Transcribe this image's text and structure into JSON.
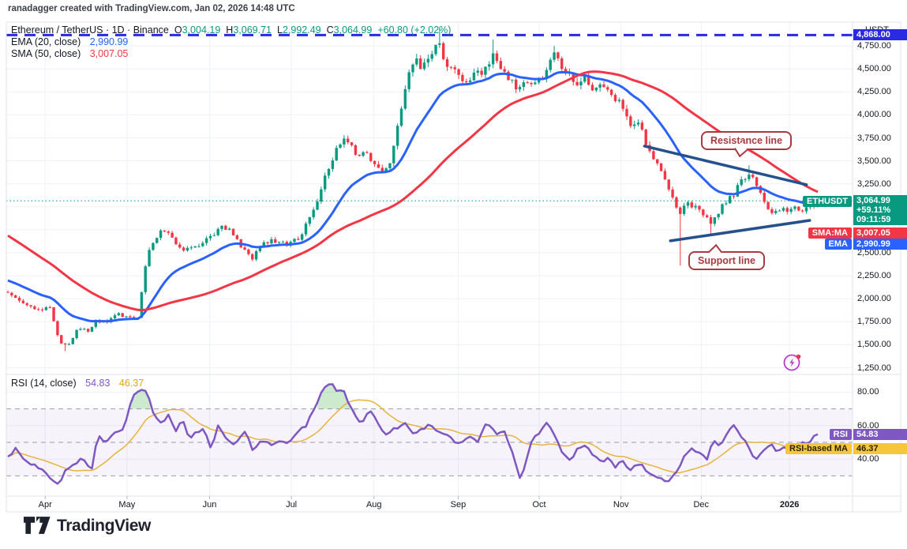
{
  "page": {
    "attribution": "ranadagger created with TradingView.com, Jan 02, 2026 14:48 UTC"
  },
  "chart": {
    "symbol_line": {
      "title": "Ethereum / TetherUS · 1D · Binance",
      "ohlc": [
        {
          "k": "O",
          "v": "3,004.19"
        },
        {
          "k": "H",
          "v": "3,069.71"
        },
        {
          "k": "L",
          "v": "2,992.49"
        },
        {
          "k": "C",
          "v": "3,064.99"
        }
      ],
      "change": "+60.80 (+2.02%)"
    },
    "indicators": [
      {
        "label": "EMA (20, close)",
        "value": "2,990.99"
      },
      {
        "label": "SMA (50, close)",
        "value": "3,007.05"
      }
    ],
    "rsi_legend": {
      "label": "RSI (14, close)",
      "value": "54.83",
      "ma_value": "46.37"
    },
    "price_axis": {
      "currency": "USDT"
    },
    "badges": {
      "ath": "4,868.00",
      "price": {
        "tag": "ETHUSDT",
        "value": "3,064.99",
        "change_pct": "+59.11%",
        "countdown": "09:11:59"
      },
      "sma": {
        "tag": "SMA:MA",
        "value": "3,007.05"
      },
      "ema": {
        "tag": "EMA",
        "value": "2,990.99"
      },
      "rsi": {
        "tag": "RSI",
        "value": "54.83"
      },
      "rsi_ma": {
        "tag": "RSI-based MA",
        "value": "46.37"
      }
    },
    "annotations": {
      "resistance": "Resistance line",
      "support": "Support line"
    }
  },
  "footer": {
    "brand": "TradingView"
  },
  "colors": {
    "up": "#089981",
    "down": "#f23645",
    "ema": "#2962ff",
    "sma": "#f23645",
    "ath": "#2a2ae2",
    "price_line": "#089981",
    "trend": "#24518b",
    "rsi": "#7e57c2",
    "rsi_ma": "#e6b33c",
    "band": "rgba(126,87,194,0.07)",
    "band_edge": "#9b9ea6",
    "overbought": "rgba(76,175,80,0.28)",
    "grid": "#eef1f7",
    "frame": "#e0e3eb"
  },
  "chart_data": {
    "type": "candlestick",
    "symbol": "ETHUSDT",
    "exchange": "Binance",
    "interval": "1D",
    "ohlc_last": {
      "open": 3004.19,
      "high": 3069.71,
      "low": 2992.49,
      "close": 3064.99,
      "change": 60.8,
      "change_pct": 2.02
    },
    "ath_line": 4868.0,
    "last_price": 3064.99,
    "candles_n": 213,
    "ema_period": 20,
    "sma_period": 50,
    "y_ticks": [
      {
        "p": 4750,
        "label": "4,750.00"
      },
      {
        "p": 4500,
        "label": "4,500.00"
      },
      {
        "p": 4250,
        "label": "4,250.00"
      },
      {
        "p": 4000,
        "label": "4,000.00"
      },
      {
        "p": 3750,
        "label": "3,750.00"
      },
      {
        "p": 3500,
        "label": "3,500.00"
      },
      {
        "p": 3250,
        "label": "3,250.00"
      },
      {
        "p": 2500,
        "label": "2,500.00"
      },
      {
        "p": 2250,
        "label": "2,250.00"
      },
      {
        "p": 2000,
        "label": "2,000.00"
      },
      {
        "p": 1750,
        "label": "1,750.00"
      },
      {
        "p": 1500,
        "label": "1,500.00"
      },
      {
        "p": 1250,
        "label": "1,250.00"
      }
    ],
    "grid_extra_prices": [
      3000,
      2750
    ],
    "x_labels": [
      {
        "label": "Apr",
        "t": 0.046
      },
      {
        "label": "May",
        "t": 0.147
      },
      {
        "label": "Jun",
        "t": 0.249
      },
      {
        "label": "Jul",
        "t": 0.35
      },
      {
        "label": "Aug",
        "t": 0.452
      },
      {
        "label": "Sep",
        "t": 0.556
      },
      {
        "label": "Oct",
        "t": 0.656
      },
      {
        "label": "Nov",
        "t": 0.757
      },
      {
        "label": "Dec",
        "t": 0.856
      },
      {
        "label": "2026",
        "t": 0.965,
        "bold": true
      }
    ],
    "close_anchors": [
      [
        0,
        2050
      ],
      [
        0.018,
        1960
      ],
      [
        0.037,
        1870
      ],
      [
        0.051,
        1920
      ],
      [
        0.063,
        1550
      ],
      [
        0.073,
        1480
      ],
      [
        0.088,
        1690
      ],
      [
        0.099,
        1640
      ],
      [
        0.109,
        1760
      ],
      [
        0.122,
        1740
      ],
      [
        0.136,
        1830
      ],
      [
        0.149,
        1790
      ],
      [
        0.161,
        1775
      ],
      [
        0.171,
        2450
      ],
      [
        0.18,
        2600
      ],
      [
        0.192,
        2760
      ],
      [
        0.205,
        2640
      ],
      [
        0.216,
        2520
      ],
      [
        0.229,
        2560
      ],
      [
        0.242,
        2620
      ],
      [
        0.253,
        2700
      ],
      [
        0.266,
        2780
      ],
      [
        0.278,
        2720
      ],
      [
        0.29,
        2550
      ],
      [
        0.3,
        2430
      ],
      [
        0.312,
        2570
      ],
      [
        0.325,
        2650
      ],
      [
        0.336,
        2590
      ],
      [
        0.349,
        2620
      ],
      [
        0.361,
        2680
      ],
      [
        0.372,
        2900
      ],
      [
        0.383,
        3100
      ],
      [
        0.395,
        3400
      ],
      [
        0.407,
        3680
      ],
      [
        0.417,
        3780
      ],
      [
        0.429,
        3560
      ],
      [
        0.441,
        3620
      ],
      [
        0.45,
        3450
      ],
      [
        0.461,
        3380
      ],
      [
        0.473,
        3520
      ],
      [
        0.482,
        3900
      ],
      [
        0.492,
        4350
      ],
      [
        0.502,
        4650
      ],
      [
        0.512,
        4500
      ],
      [
        0.523,
        4700
      ],
      [
        0.532,
        4820
      ],
      [
        0.541,
        4550
      ],
      [
        0.553,
        4480
      ],
      [
        0.565,
        4350
      ],
      [
        0.577,
        4430
      ],
      [
        0.589,
        4480
      ],
      [
        0.601,
        4650
      ],
      [
        0.614,
        4450
      ],
      [
        0.626,
        4300
      ],
      [
        0.638,
        4380
      ],
      [
        0.65,
        4320
      ],
      [
        0.663,
        4450
      ],
      [
        0.675,
        4650
      ],
      [
        0.687,
        4500
      ],
      [
        0.7,
        4350
      ],
      [
        0.711,
        4400
      ],
      [
        0.723,
        4280
      ],
      [
        0.734,
        4350
      ],
      [
        0.746,
        4200
      ],
      [
        0.758,
        4100
      ],
      [
        0.768,
        3850
      ],
      [
        0.778,
        3950
      ],
      [
        0.787,
        3700
      ],
      [
        0.797,
        3550
      ],
      [
        0.809,
        3380
      ],
      [
        0.819,
        3150
      ],
      [
        0.828,
        2900
      ],
      [
        0.84,
        3050
      ],
      [
        0.85,
        2980
      ],
      [
        0.861,
        2920
      ],
      [
        0.87,
        2820
      ],
      [
        0.882,
        3020
      ],
      [
        0.895,
        3120
      ],
      [
        0.906,
        3280
      ],
      [
        0.916,
        3360
      ],
      [
        0.926,
        3180
      ],
      [
        0.936,
        3000
      ],
      [
        0.945,
        2920
      ],
      [
        0.957,
        2960
      ],
      [
        0.968,
        2990
      ],
      [
        0.979,
        2950
      ],
      [
        0.989,
        3004.19
      ],
      [
        1,
        3064.99
      ]
    ],
    "history_anchors": [
      [
        -0.27,
        3380
      ],
      [
        -0.24,
        3350
      ],
      [
        -0.19,
        3250
      ],
      [
        -0.14,
        2950
      ],
      [
        -0.1,
        2500
      ],
      [
        -0.07,
        2150
      ],
      [
        -0.05,
        2080
      ],
      [
        -0.025,
        2060
      ]
    ],
    "wicks": [
      {
        "t": 0.073,
        "p": 1430,
        "side": "low"
      },
      {
        "t": 0.532,
        "p": 4950,
        "side": "high"
      },
      {
        "t": 0.601,
        "p": 4820,
        "side": "high"
      },
      {
        "t": 0.675,
        "p": 4750,
        "side": "high"
      },
      {
        "t": 0.828,
        "p": 2360,
        "side": "low"
      },
      {
        "t": 0.87,
        "p": 2680,
        "side": "low"
      },
      {
        "t": 0.916,
        "p": 3450,
        "side": "high"
      }
    ],
    "trend_lines": {
      "resistance": {
        "t1": 0.786,
        "p1": 3660,
        "t2": 0.986,
        "p2": 3240
      },
      "support": {
        "t1": 0.818,
        "p1": 2630,
        "t2": 0.99,
        "p2": 2852
      }
    },
    "rsi": {
      "value": 54.83,
      "ma_value": 46.37,
      "ma_period": 14,
      "axis_ticks": [
        {
          "r": 80,
          "label": "80.00"
        },
        {
          "r": 60,
          "label": "60.00"
        },
        {
          "r": 40,
          "label": "40.00"
        }
      ],
      "band": [
        30,
        70
      ],
      "mid": 50,
      "anchors": [
        [
          0,
          42
        ],
        [
          0.01,
          46
        ],
        [
          0.024,
          38
        ],
        [
          0.039,
          35
        ],
        [
          0.051,
          30
        ],
        [
          0.061,
          24
        ],
        [
          0.073,
          34
        ],
        [
          0.083,
          38
        ],
        [
          0.093,
          40
        ],
        [
          0.099,
          36
        ],
        [
          0.105,
          33
        ],
        [
          0.11,
          54
        ],
        [
          0.12,
          51
        ],
        [
          0.132,
          55
        ],
        [
          0.141,
          57
        ],
        [
          0.154,
          76
        ],
        [
          0.163,
          83
        ],
        [
          0.172,
          79
        ],
        [
          0.181,
          65
        ],
        [
          0.19,
          62
        ],
        [
          0.198,
          66
        ],
        [
          0.207,
          57
        ],
        [
          0.216,
          63
        ],
        [
          0.224,
          52
        ],
        [
          0.234,
          56
        ],
        [
          0.242,
          59
        ],
        [
          0.25,
          46
        ],
        [
          0.26,
          60
        ],
        [
          0.271,
          52
        ],
        [
          0.28,
          47
        ],
        [
          0.292,
          58
        ],
        [
          0.302,
          45
        ],
        [
          0.314,
          52
        ],
        [
          0.324,
          49
        ],
        [
          0.336,
          52
        ],
        [
          0.348,
          50
        ],
        [
          0.358,
          56
        ],
        [
          0.368,
          60
        ],
        [
          0.378,
          70
        ],
        [
          0.388,
          80
        ],
        [
          0.398,
          86
        ],
        [
          0.407,
          80
        ],
        [
          0.413,
          82
        ],
        [
          0.423,
          72
        ],
        [
          0.431,
          65
        ],
        [
          0.437,
          60
        ],
        [
          0.446,
          71
        ],
        [
          0.456,
          63
        ],
        [
          0.466,
          54
        ],
        [
          0.478,
          58
        ],
        [
          0.489,
          62
        ],
        [
          0.499,
          55
        ],
        [
          0.509,
          57
        ],
        [
          0.521,
          60
        ],
        [
          0.534,
          57
        ],
        [
          0.546,
          52
        ],
        [
          0.558,
          50
        ],
        [
          0.57,
          53
        ],
        [
          0.58,
          50
        ],
        [
          0.592,
          63
        ],
        [
          0.602,
          55
        ],
        [
          0.612,
          57
        ],
        [
          0.624,
          44
        ],
        [
          0.632,
          28
        ],
        [
          0.639,
          37
        ],
        [
          0.646,
          51
        ],
        [
          0.655,
          55
        ],
        [
          0.666,
          62
        ],
        [
          0.674,
          54
        ],
        [
          0.684,
          45
        ],
        [
          0.694,
          40
        ],
        [
          0.704,
          46
        ],
        [
          0.713,
          48
        ],
        [
          0.723,
          42
        ],
        [
          0.733,
          38
        ],
        [
          0.743,
          41
        ],
        [
          0.75,
          36
        ],
        [
          0.76,
          38
        ],
        [
          0.77,
          34
        ],
        [
          0.78,
          38
        ],
        [
          0.789,
          32
        ],
        [
          0.799,
          31
        ],
        [
          0.811,
          26
        ],
        [
          0.819,
          28
        ],
        [
          0.826,
          33
        ],
        [
          0.836,
          43
        ],
        [
          0.846,
          46
        ],
        [
          0.856,
          44
        ],
        [
          0.863,
          40
        ],
        [
          0.871,
          52
        ],
        [
          0.879,
          48
        ],
        [
          0.889,
          56
        ],
        [
          0.898,
          60
        ],
        [
          0.908,
          52
        ],
        [
          0.916,
          47
        ],
        [
          0.923,
          38
        ],
        [
          0.932,
          46
        ],
        [
          0.941,
          49
        ],
        [
          0.951,
          44
        ],
        [
          0.961,
          47
        ],
        [
          0.971,
          45
        ],
        [
          0.98,
          49
        ],
        [
          0.99,
          51
        ],
        [
          1,
          54.83
        ]
      ]
    }
  }
}
